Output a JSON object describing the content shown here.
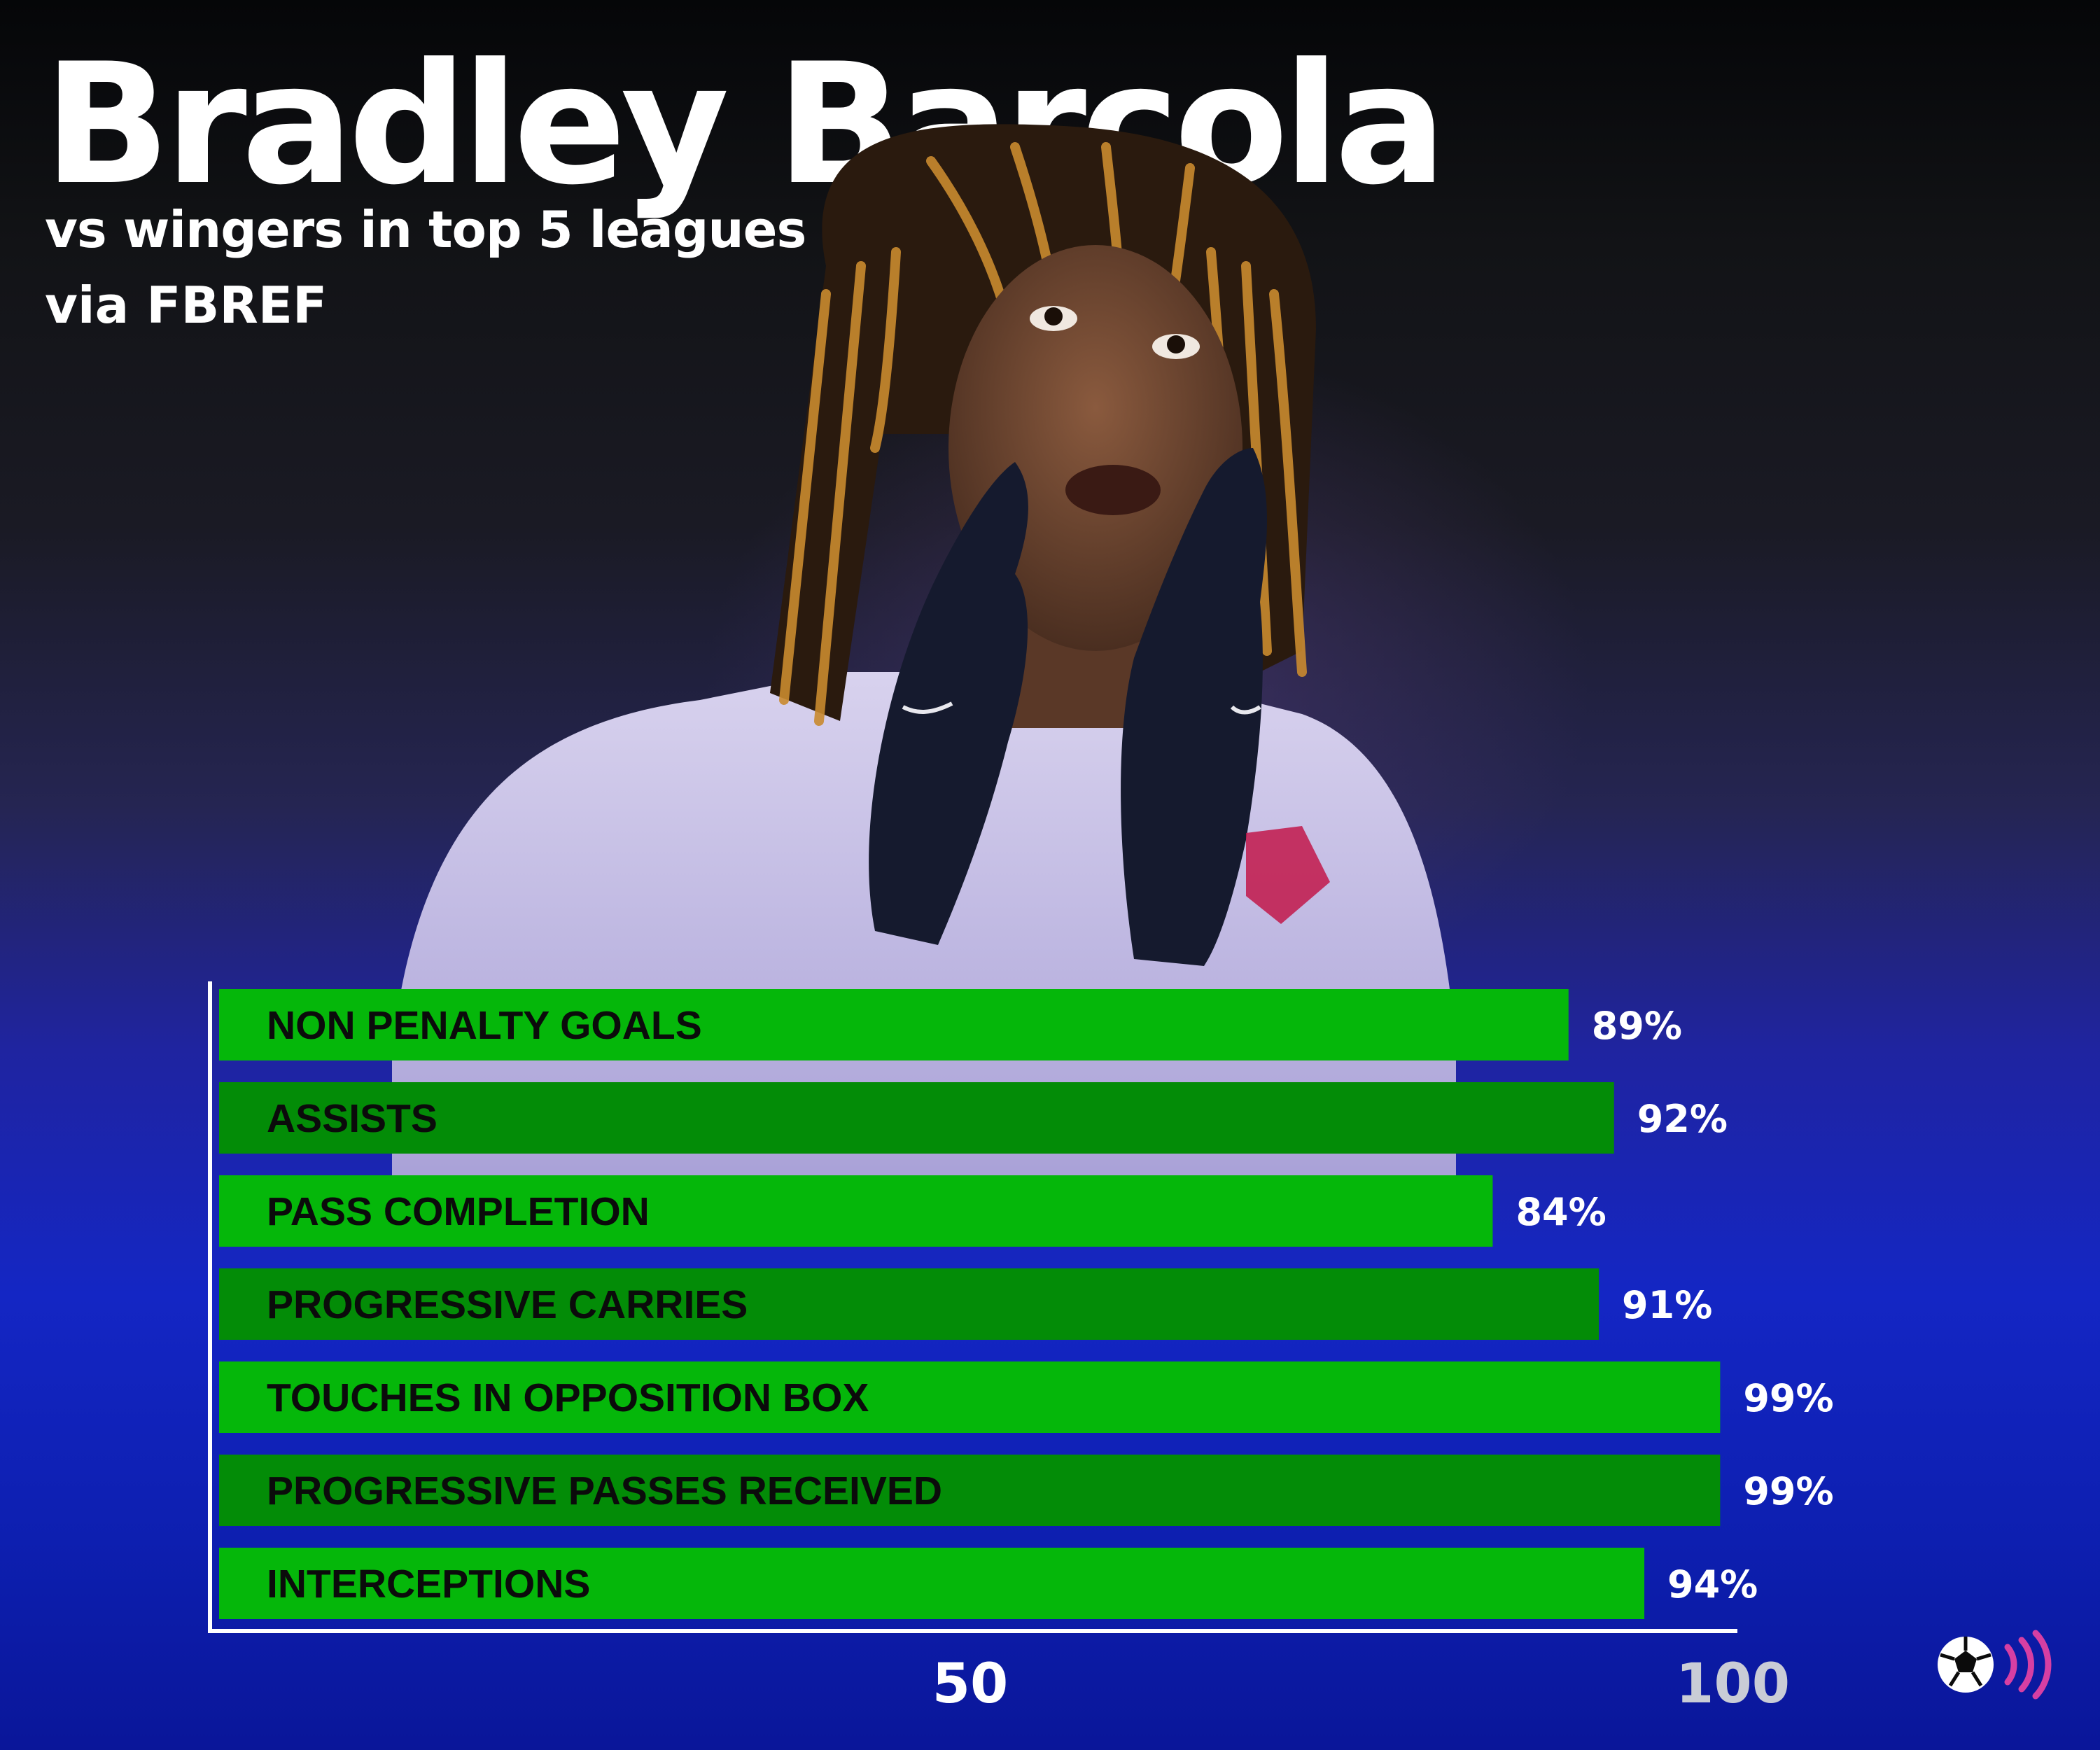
{
  "header": {
    "title": "Bradley Barcola",
    "subtitle": "vs wingers in top 5 leagues",
    "source": "via FBREF"
  },
  "colors": {
    "bar_primary": "#05b70a",
    "bar_alternate": "#038c07",
    "axis": "#ffffff",
    "tick_50": "#ffffff",
    "tick_100": "#c9ccd6",
    "logo_accent": "#d63fa3"
  },
  "icons": {
    "logo": "football-broadcast-logo"
  },
  "chart_data": {
    "type": "bar",
    "orientation": "horizontal",
    "categories": [
      "NON PENALTY GOALS",
      "ASSISTS",
      "PASS COMPLETION",
      "PROGRESSIVE CARRIES",
      "TOUCHES IN OPPOSITION BOX",
      "PROGRESSIVE PASSES RECEIVED",
      "INTERCEPTIONS"
    ],
    "values": [
      89,
      92,
      84,
      91,
      99,
      99,
      94
    ],
    "value_labels": [
      "89%",
      "92%",
      "84%",
      "91%",
      "99%",
      "99%",
      "94%"
    ],
    "xlim": [
      0,
      100
    ],
    "xticks": [
      50,
      100
    ],
    "xtick_labels": [
      "50",
      "100"
    ],
    "grid": false,
    "legend": "none"
  }
}
